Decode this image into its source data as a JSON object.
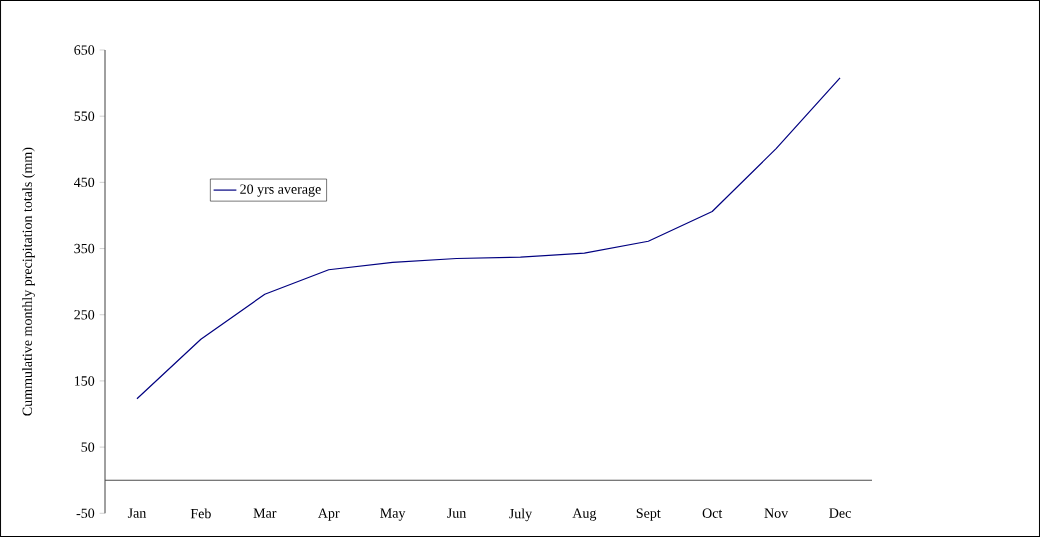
{
  "chart_data": {
    "type": "line",
    "ylabel": "Cummulative monthly precipitation totals (mm)",
    "categories": [
      "Jan",
      "Feb",
      "Mar",
      "Apr",
      "May",
      "Jun",
      "July",
      "Aug",
      "Sept",
      "Oct",
      "Nov",
      "Dec"
    ],
    "series": [
      {
        "name": "20 yrs average",
        "color": "#000080",
        "values": [
          123,
          213,
          281,
          318,
          329,
          335,
          337,
          343,
          361,
          406,
          501,
          608
        ]
      }
    ],
    "ylim": [
      -50,
      650
    ],
    "yticks": [
      -50,
      50,
      150,
      250,
      350,
      450,
      550,
      650
    ],
    "legend": "top left"
  }
}
